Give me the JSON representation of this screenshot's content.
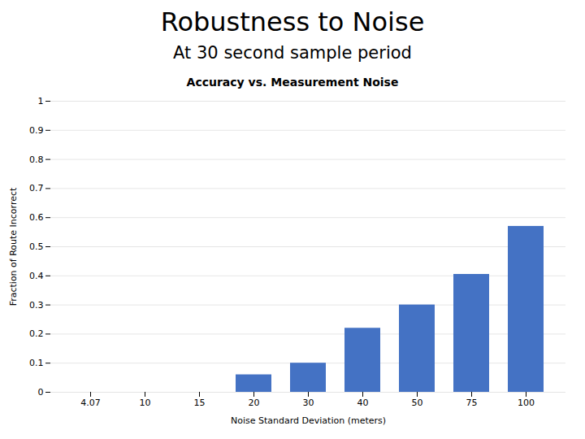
{
  "chart_data": {
    "type": "bar",
    "title": "Robustness to Noise",
    "subtitle": "At 30 second sample period",
    "annotations": [
      "Accuracy vs. Measurement Noise"
    ],
    "xlabel": "Noise Standard Deviation (meters)",
    "ylabel": "Fraction of Route Incorrect",
    "categories": [
      "4.07",
      "10",
      "15",
      "20",
      "30",
      "40",
      "50",
      "75",
      "100"
    ],
    "values": [
      0.0,
      0.0,
      0.0,
      0.06,
      0.1,
      0.22,
      0.3,
      0.405,
      0.57
    ],
    "color": "#4472C4",
    "ylim": [
      0,
      1.0
    ],
    "yticks": [
      0,
      0.1,
      0.2,
      0.3,
      0.4,
      0.5,
      0.6,
      0.7,
      0.8,
      0.9,
      1
    ],
    "grid": true
  }
}
